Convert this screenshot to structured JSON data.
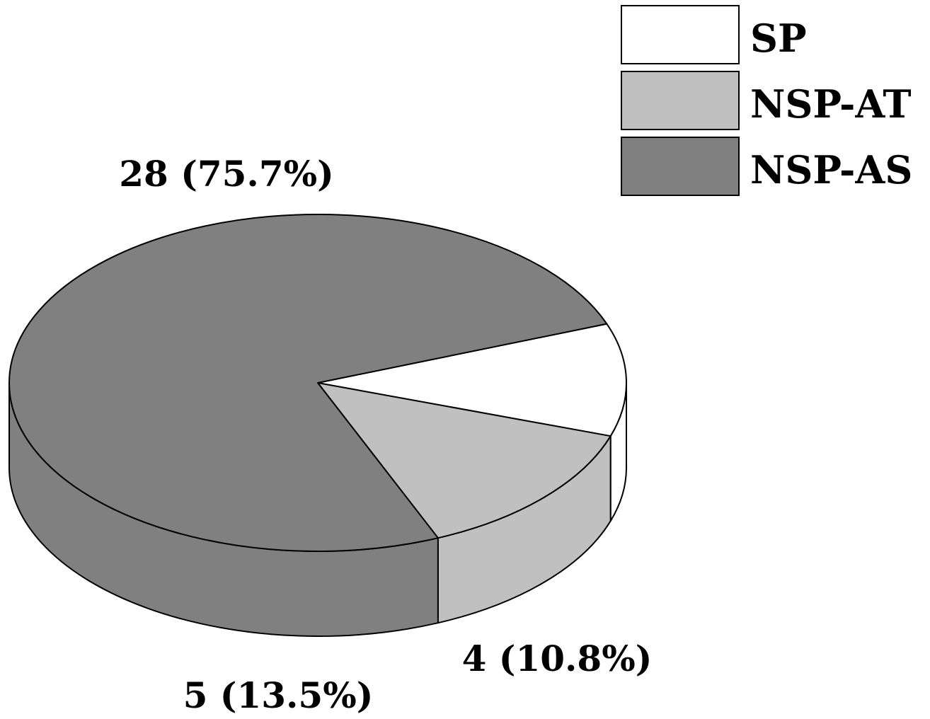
{
  "chart_data": {
    "type": "pie",
    "style": "3d",
    "slices": [
      {
        "label": "SP",
        "value": 4,
        "percent": 10.8,
        "data_label": "4 (10.8%)",
        "color": "#ffffff"
      },
      {
        "label": "NSP-AT",
        "value": 5,
        "percent": 13.5,
        "data_label": "5 (13.5%)",
        "color": "#c0c0c0"
      },
      {
        "label": "NSP-AS",
        "value": 28,
        "percent": 75.7,
        "data_label": "28 (75.7%)",
        "color": "#808080"
      }
    ],
    "edge_color": "#000000",
    "legend": {
      "placement": "top-right",
      "entries": [
        "SP",
        "NSP-AT",
        "NSP-AS"
      ]
    },
    "title": "",
    "xlabel": "",
    "ylabel": ""
  }
}
